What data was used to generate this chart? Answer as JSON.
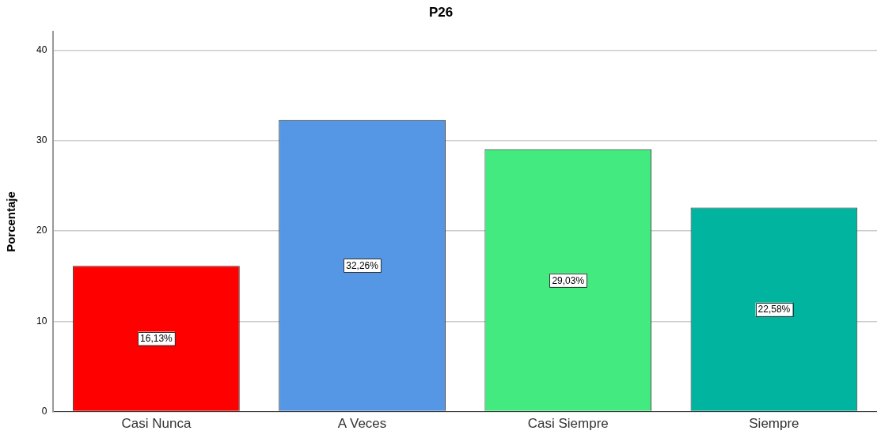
{
  "chart_data": {
    "type": "bar",
    "title": "P26",
    "ylabel": "Porcentaje",
    "categories": [
      "Casi Nunca",
      "A Veces",
      "Casi Siempre",
      "Siempre"
    ],
    "values": [
      16.13,
      32.26,
      29.03,
      22.58
    ],
    "colors": [
      "#ff0000",
      "#5596e5",
      "#42ea7f",
      "#00b49f"
    ],
    "value_labels": [
      "16,13%",
      "32,26%",
      "29,03%",
      "22,58%"
    ],
    "ylim": [
      0,
      42
    ],
    "yticks": [
      0,
      10,
      20,
      30,
      40
    ],
    "grid": "y"
  }
}
